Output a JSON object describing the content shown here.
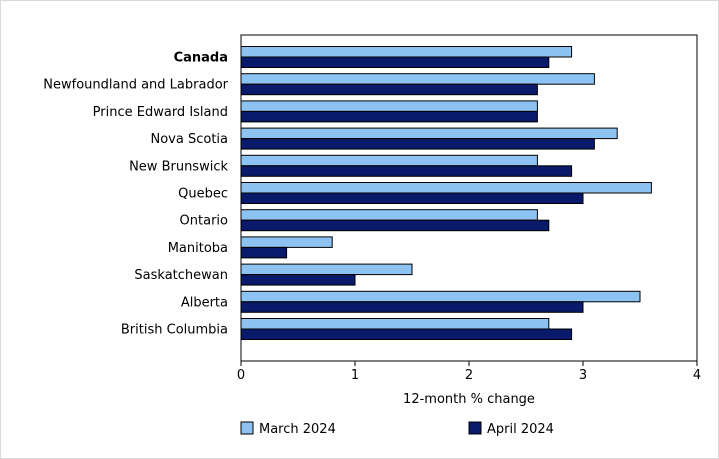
{
  "chart_data": {
    "type": "bar",
    "orientation": "horizontal",
    "title": "",
    "xlabel": "12-month % change",
    "ylabel": "",
    "xlim": [
      0,
      4
    ],
    "xticks": [
      0,
      1,
      2,
      3,
      4
    ],
    "grid": false,
    "legend_position": "bottom",
    "categories": [
      "Canada",
      "Newfoundland and Labrador",
      "Prince Edward Island",
      "Nova Scotia",
      "New Brunswick",
      "Quebec",
      "Ontario",
      "Manitoba",
      "Saskatchewan",
      "Alberta",
      "British Columbia"
    ],
    "bold_categories": [
      "Canada"
    ],
    "series": [
      {
        "name": "March 2024",
        "color": "#8dc3f2",
        "values": [
          2.9,
          3.1,
          2.6,
          3.3,
          2.6,
          3.6,
          2.6,
          0.8,
          1.5,
          3.5,
          2.7
        ]
      },
      {
        "name": "April 2024",
        "color": "#0a1a6b",
        "values": [
          2.7,
          2.6,
          2.6,
          3.1,
          2.9,
          3.0,
          2.7,
          0.4,
          1.0,
          3.0,
          2.9
        ]
      }
    ]
  }
}
